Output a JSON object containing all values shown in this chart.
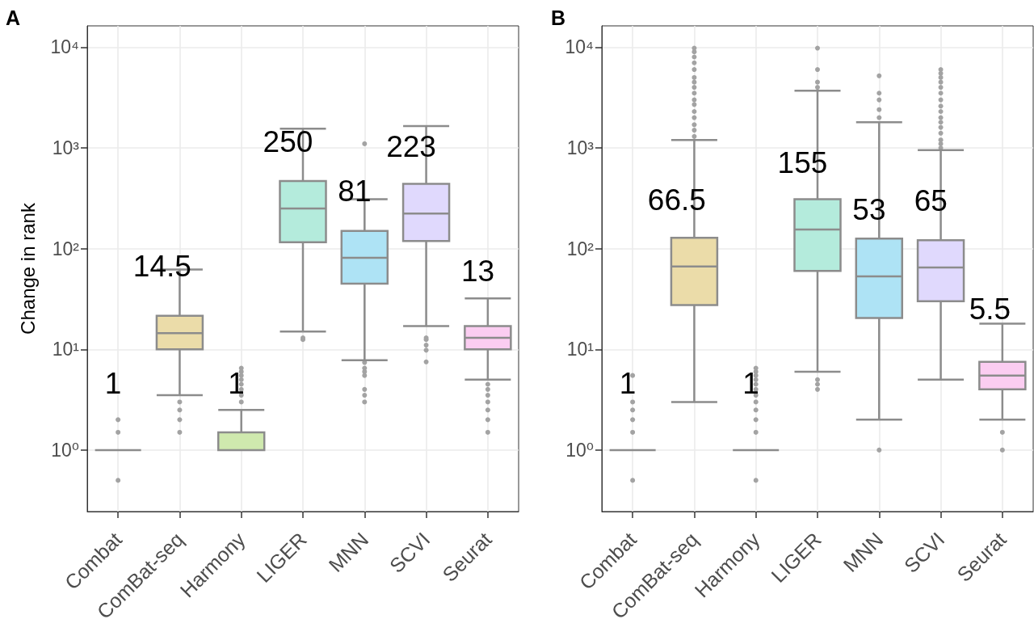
{
  "chart_data": [
    {
      "type": "box",
      "title": "A",
      "ylabel": "Change in rank",
      "categories": [
        "Combat",
        "ComBat-seq",
        "Harmony",
        "LIGER",
        "MNN",
        "SCVI",
        "Seurat"
      ],
      "boxes": [
        {
          "low": 1,
          "q1": 1,
          "median": 1,
          "q3": 1,
          "high": 1,
          "outliers": [
            0.5,
            1.5,
            2
          ]
        },
        {
          "low": 3.5,
          "q1": 10,
          "median": 14.5,
          "q3": 21.5,
          "high": 62,
          "outliers": [
            1.5,
            2,
            2.5,
            3
          ]
        },
        {
          "low": 1,
          "q1": 1,
          "median": 1,
          "q3": 1.5,
          "high": 2.5,
          "outliers": [
            3,
            3.5,
            4,
            4.5,
            5,
            5.5,
            6,
            6.5
          ]
        },
        {
          "low": 15,
          "q1": 116,
          "median": 250,
          "q3": 470,
          "high": 1550,
          "outliers": [
            12.5,
            13
          ]
        },
        {
          "low": 7.8,
          "q1": 45,
          "median": 81,
          "q3": 150,
          "high": 310,
          "outliers": [
            3,
            3.5,
            4,
            5.5,
            6,
            6.5,
            7.4,
            1100
          ]
        },
        {
          "low": 17,
          "q1": 119,
          "median": 223,
          "q3": 440,
          "high": 1650,
          "outliers": [
            7.5,
            9.8,
            11,
            12.5,
            13
          ]
        },
        {
          "low": 5,
          "q1": 10,
          "median": 13,
          "q3": 17,
          "high": 32,
          "outliers": [
            1.5,
            2,
            2.5,
            3,
            3.5,
            4,
            4.5
          ]
        }
      ],
      "colors": [
        "#8c8c8c",
        "#ebdca9",
        "#cfe9ae",
        "#b4ebdc",
        "#aee3f5",
        "#e0d9fd",
        "#fbcdf1"
      ],
      "annotations": [
        {
          "text": "1",
          "x": "Combat",
          "y": 1
        },
        {
          "text": "14.5",
          "x": "ComBat-seq",
          "y": 14.5
        },
        {
          "text": "1",
          "x": "Harmony",
          "y": 1
        },
        {
          "text": "250",
          "x": "LIGER",
          "y": 250
        },
        {
          "text": "81",
          "x": "MNN",
          "y": 81
        },
        {
          "text": "223",
          "x": "SCVI",
          "y": 223
        },
        {
          "text": "13",
          "x": "Seurat",
          "y": 13
        }
      ],
      "ylim": [
        0.245,
        16300
      ],
      "yticks": [
        {
          "value": 1,
          "label": "10⁰"
        },
        {
          "value": 10,
          "label": "10¹"
        },
        {
          "value": 100,
          "label": "10²"
        },
        {
          "value": 1000,
          "label": "10³"
        },
        {
          "value": 10000,
          "label": "10⁴"
        }
      ],
      "log": true,
      "grid": true
    },
    {
      "type": "box",
      "title": "B",
      "categories": [
        "Combat",
        "ComBat-seq",
        "Harmony",
        "LIGER",
        "MNN",
        "SCVI",
        "Seurat"
      ],
      "boxes": [
        {
          "low": 1,
          "q1": 1,
          "median": 1,
          "q3": 1,
          "high": 1,
          "outliers": [
            0.5,
            1.5,
            2,
            2.5,
            3,
            5.5
          ]
        },
        {
          "low": 3,
          "q1": 27.5,
          "median": 66.5,
          "q3": 128,
          "high": 1200,
          "outliers": [
            1300,
            1500,
            1700,
            2000,
            2300,
            2700,
            3000,
            3500,
            4000,
            4500,
            5000,
            6000,
            7000,
            8000,
            9000,
            9800
          ]
        },
        {
          "low": 1,
          "q1": 1,
          "median": 1,
          "q3": 1,
          "high": 1,
          "outliers": [
            0.5,
            1.5,
            2,
            2.5,
            3,
            3.5,
            4,
            4.5,
            5,
            5.5,
            6,
            6.5
          ]
        },
        {
          "low": 6,
          "q1": 60,
          "median": 155,
          "q3": 310,
          "high": 3700,
          "outliers": [
            4,
            4.5,
            5,
            4000,
            4500,
            6000,
            9800
          ]
        },
        {
          "low": 2,
          "q1": 20.5,
          "median": 53,
          "q3": 126,
          "high": 1800,
          "outliers": [
            1,
            2000,
            2400,
            3000,
            3500,
            5200
          ]
        },
        {
          "low": 5,
          "q1": 30,
          "median": 65,
          "q3": 121,
          "high": 950,
          "outliers": [
            1000,
            1100,
            1200,
            1400,
            1600,
            1800,
            2000,
            2300,
            2600,
            3000,
            3500,
            4000,
            4500,
            5000,
            5500,
            6000
          ]
        },
        {
          "low": 2,
          "q1": 4,
          "median": 5.5,
          "q3": 7.5,
          "high": 18,
          "outliers": [
            1,
            1.5
          ]
        }
      ],
      "colors": [
        "#8c8c8c",
        "#ebdca9",
        "#8c8c8c",
        "#b4ebdc",
        "#aee3f5",
        "#e0d9fd",
        "#fbcdf1"
      ],
      "annotations": [
        {
          "text": "1",
          "x": "Combat",
          "y": 1
        },
        {
          "text": "66.5",
          "x": "ComBat-seq",
          "y": 66.5
        },
        {
          "text": "1",
          "x": "Harmony",
          "y": 1
        },
        {
          "text": "155",
          "x": "LIGER",
          "y": 155
        },
        {
          "text": "53",
          "x": "MNN",
          "y": 53
        },
        {
          "text": "65",
          "x": "SCVI",
          "y": 65
        },
        {
          "text": "5.5",
          "x": "Seurat",
          "y": 5.5
        }
      ],
      "ylim": [
        0.245,
        16300
      ],
      "yticks": [
        {
          "value": 1,
          "label": "10⁰"
        },
        {
          "value": 10,
          "label": "10¹"
        },
        {
          "value": 100,
          "label": "10²"
        },
        {
          "value": 1000,
          "label": "10³"
        },
        {
          "value": 10000,
          "label": "10⁴"
        }
      ],
      "log": true,
      "grid": true
    }
  ]
}
